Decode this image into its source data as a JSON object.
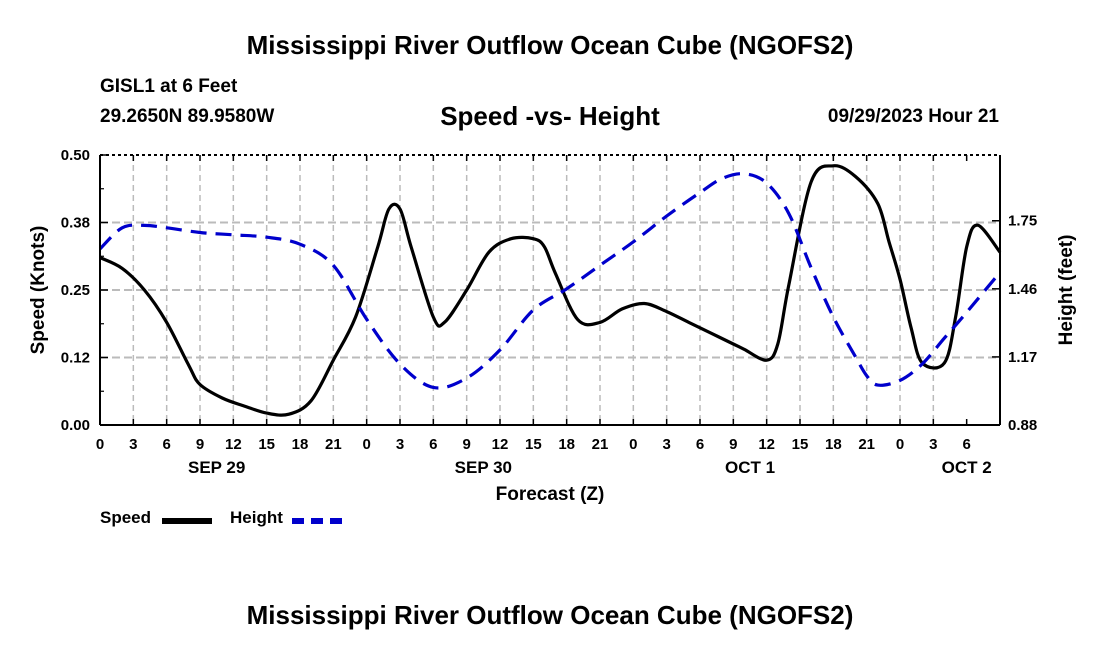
{
  "page": {
    "title": "Mississippi River Outflow Ocean Cube (NGOFS2)",
    "title_repeat": "Mississippi River Outflow Ocean Cube (NGOFS2)",
    "station": "GISL1 at 6 Feet",
    "coords": "29.2650N  89.9580W",
    "subtitle": "Speed -vs- Height",
    "datetime": "09/29/2023 Hour 21"
  },
  "chart_data": {
    "type": "line",
    "xlabel": "Forecast (Z)",
    "ylabel_left": "Speed (Knots)",
    "ylabel_right": "Height (feet)",
    "x_range": [
      0,
      81
    ],
    "x_tick_step_hours": 3,
    "x_tick_labels": [
      "0",
      "3",
      "6",
      "9",
      "12",
      "15",
      "18",
      "21",
      "0",
      "3",
      "6",
      "9",
      "12",
      "15",
      "18",
      "21",
      "0",
      "3",
      "6",
      "9",
      "12",
      "15",
      "18",
      "21",
      "0",
      "3",
      "6"
    ],
    "date_labels": [
      {
        "label": "SEP 29",
        "hour": 10.5
      },
      {
        "label": "SEP 30",
        "hour": 34.5
      },
      {
        "label": "OCT 1",
        "hour": 58.5
      },
      {
        "label": "OCT 2",
        "hour": 78
      }
    ],
    "y_left": {
      "min": 0,
      "max": 0.5,
      "ticks": [
        0.0,
        0.125,
        0.25,
        0.375,
        0.5
      ],
      "tick_labels": [
        "0.00",
        "0.12",
        "0.25",
        "0.38",
        "0.50"
      ]
    },
    "y_right": {
      "min": 0.88,
      "max": 2.03,
      "ticks": [
        0.88,
        1.17,
        1.46,
        1.75
      ],
      "tick_labels": [
        "0.88",
        "1.17",
        "1.46",
        "1.75"
      ]
    },
    "grid": true,
    "series": [
      {
        "name": "Speed",
        "axis": "left",
        "color": "#000000",
        "dash": "solid",
        "x": [
          0,
          2,
          4,
          6,
          8,
          9,
          11,
          13,
          15,
          17,
          19,
          21,
          23,
          25,
          26,
          27,
          28,
          30,
          31,
          33,
          35,
          37,
          39,
          40,
          41,
          43,
          45,
          47,
          49,
          51,
          53,
          55,
          57,
          58,
          60,
          61,
          62,
          64,
          66,
          68,
          70,
          71,
          72,
          73,
          74,
          76,
          77,
          78,
          79,
          81
        ],
        "values": [
          0.31,
          0.29,
          0.25,
          0.19,
          0.11,
          0.075,
          0.05,
          0.035,
          0.022,
          0.02,
          0.045,
          0.12,
          0.2,
          0.33,
          0.4,
          0.4,
          0.33,
          0.2,
          0.19,
          0.25,
          0.32,
          0.345,
          0.345,
          0.33,
          0.28,
          0.195,
          0.19,
          0.215,
          0.225,
          0.21,
          0.19,
          0.17,
          0.15,
          0.14,
          0.12,
          0.15,
          0.26,
          0.45,
          0.48,
          0.46,
          0.41,
          0.34,
          0.27,
          0.18,
          0.115,
          0.115,
          0.2,
          0.33,
          0.37,
          0.32
        ]
      },
      {
        "name": "Height",
        "axis": "right",
        "color": "#0000cc",
        "dash": "dashed",
        "x": [
          0,
          2,
          4,
          6,
          9,
          12,
          15,
          18,
          21,
          24,
          27,
          30,
          33,
          36,
          39,
          42,
          45,
          48,
          51,
          54,
          56,
          58,
          60,
          62,
          64,
          66,
          68,
          69,
          70,
          72,
          74,
          76,
          78,
          81
        ],
        "values": [
          1.63,
          1.72,
          1.73,
          1.72,
          1.7,
          1.69,
          1.68,
          1.65,
          1.56,
          1.33,
          1.14,
          1.04,
          1.08,
          1.2,
          1.37,
          1.46,
          1.56,
          1.66,
          1.77,
          1.87,
          1.93,
          1.95,
          1.91,
          1.78,
          1.55,
          1.34,
          1.17,
          1.09,
          1.05,
          1.07,
          1.14,
          1.25,
          1.36,
          1.53
        ]
      }
    ],
    "legend": [
      {
        "label": "Speed",
        "color": "#000000",
        "dash": "solid"
      },
      {
        "label": "Height",
        "color": "#0000cc",
        "dash": "dashed"
      }
    ]
  }
}
